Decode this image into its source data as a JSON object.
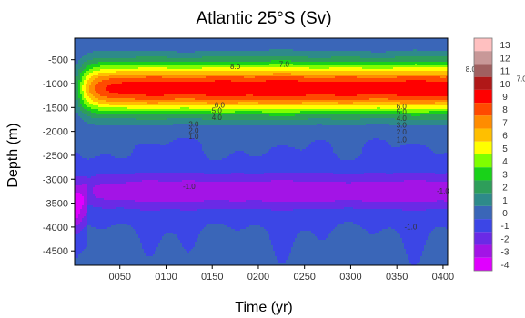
{
  "chart_data": {
    "type": "heatmap",
    "subtype": "filled-contour",
    "title": "Atlantic 25°S (Sv)",
    "xlabel": "Time (yr)",
    "ylabel": "Depth (m)",
    "xlim": [
      1,
      405
    ],
    "ylim": [
      -4800,
      -50
    ],
    "x_ticks": [
      50,
      100,
      150,
      200,
      250,
      300,
      350,
      400
    ],
    "x_tick_labels": [
      "0050",
      "0100",
      "0150",
      "0200",
      "0250",
      "0300",
      "0350",
      "0400"
    ],
    "y_ticks": [
      -500,
      -1000,
      -1500,
      -2000,
      -2500,
      -3000,
      -3500,
      -4000,
      -4500
    ],
    "y_tick_labels": [
      "-500",
      "-1000",
      "-1500",
      "-2000",
      "-2500",
      "-3000",
      "-3500",
      "-4000",
      "-4500"
    ],
    "grid": false,
    "colorbar": {
      "position": "right",
      "levels": [
        13,
        12,
        11,
        10,
        9,
        8,
        7,
        6,
        5,
        4,
        3,
        2,
        1,
        0,
        -1,
        -2,
        -3,
        -4
      ],
      "colors": [
        "#ffc0c0",
        "#c89898",
        "#a06060",
        "#b01818",
        "#ff0000",
        "#ff4a00",
        "#ff8c00",
        "#ffbf00",
        "#ffff00",
        "#7fff00",
        "#19d219",
        "#2e9e5a",
        "#2e8a8a",
        "#3a66b8",
        "#3c46e6",
        "#6a2ae6",
        "#a314e6",
        "#e000ff"
      ]
    },
    "contour_labels": [
      "8.0",
      "7.0",
      "8.0",
      "7.0",
      "6.0",
      "5.0",
      "4.0",
      "3.0",
      "2.0",
      "1.0",
      "6.0",
      "5.0",
      "4.0",
      "3.0",
      "2.0",
      "1.0",
      "-1.0",
      "-1.0",
      "-1.0"
    ]
  }
}
